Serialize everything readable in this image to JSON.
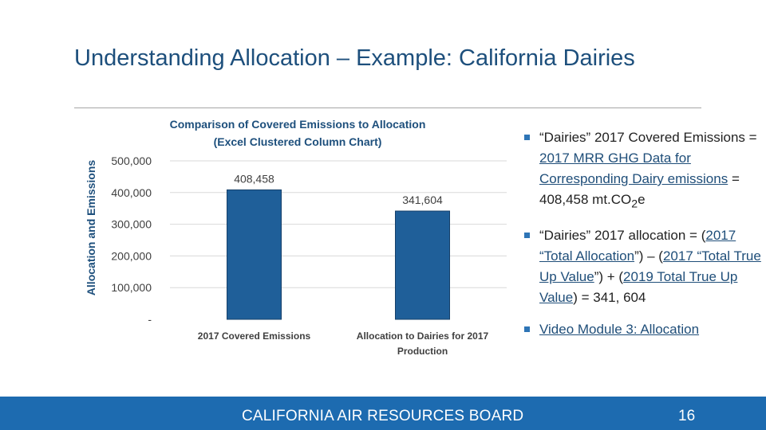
{
  "slide": {
    "title": "Understanding Allocation – Example: California Dairies",
    "footer": "CALIFORNIA AIR RESOURCES BOARD",
    "page_number": "16"
  },
  "bullets": {
    "b1": {
      "prefix": "“Dairies” 2017 Covered Emissions = ",
      "link": "2017 MRR GHG Data for Corresponding Dairy emissions",
      "suffix": " = 408,458 mt.CO",
      "sub": "2",
      "end": "e"
    },
    "b2": {
      "prefix": "“Dairies” 2017 allocation = (",
      "link1": "2017 “Total Allocation",
      "mid1": "”) – (",
      "link2": "2017 “Total True Up Value",
      "mid2": "”) + (",
      "link3": "2019 Total True Up Value",
      "end": ") = 341, 604"
    },
    "b3": {
      "link": "Video Module 3: Allocation"
    }
  },
  "colors": {
    "bar": "#1f5f99",
    "title": "#1d4f7c",
    "footer": "#1d6bb0"
  },
  "chart_data": {
    "type": "bar",
    "title": "Comparison of Covered Emissions to Allocation",
    "subtitle": "(Excel Clustered Column Chart)",
    "ylabel": "Allocation and Emissions",
    "xlabel": "",
    "ylim": [
      0,
      500000
    ],
    "yticks": [
      0,
      100000,
      200000,
      300000,
      400000,
      500000
    ],
    "ytick_labels": [
      "-",
      "100,000",
      "200,000",
      "300,000",
      "400,000",
      "500,000"
    ],
    "categories": [
      [
        "2017 Covered Emissions"
      ],
      [
        "Allocation to Dairies for 2017",
        "Production"
      ]
    ],
    "values": [
      408458,
      341604
    ],
    "data_labels": [
      "408,458",
      "341,604"
    ],
    "grid": true
  }
}
